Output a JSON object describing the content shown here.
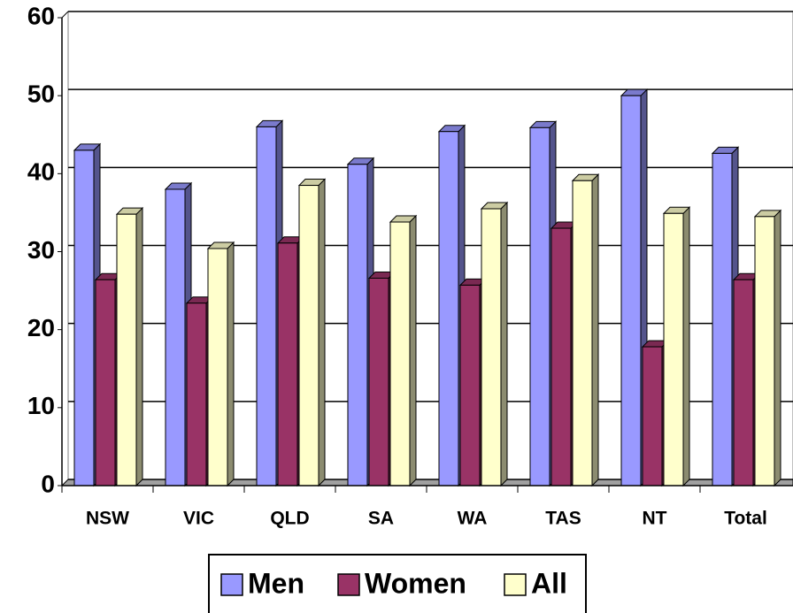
{
  "chart_data": {
    "type": "bar",
    "three_d": true,
    "categories": [
      "NSW",
      "VIC",
      "QLD",
      "SA",
      "WA",
      "TAS",
      "NT",
      "Total"
    ],
    "series": [
      {
        "name": "Men",
        "color": "#9999ff",
        "values": [
          43.0,
          38.0,
          46.0,
          41.2,
          45.4,
          45.9,
          50.0,
          42.6
        ]
      },
      {
        "name": "Women",
        "color": "#993366",
        "values": [
          26.4,
          23.4,
          31.1,
          26.6,
          25.7,
          33.0,
          17.8,
          26.4
        ]
      },
      {
        "name": "All",
        "color": "#ffffcc",
        "values": [
          34.8,
          30.4,
          38.5,
          33.8,
          35.5,
          39.1,
          34.9,
          34.5
        ]
      }
    ],
    "ylim": [
      0,
      60
    ],
    "yticks": [
      0,
      10,
      20,
      30,
      40,
      50,
      60
    ],
    "grid": true,
    "legend": "bottom"
  }
}
